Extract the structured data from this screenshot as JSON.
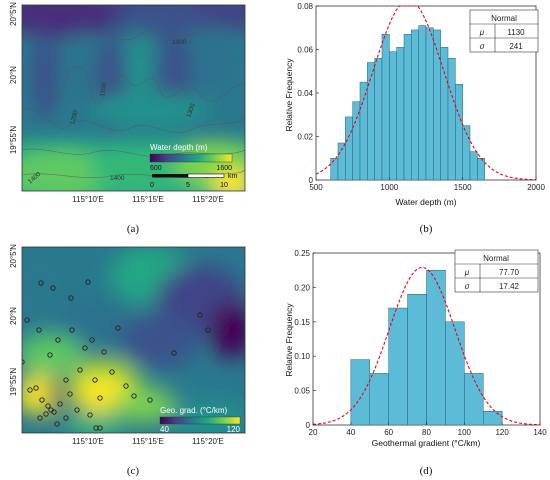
{
  "chart_data": [
    {
      "panel": "(a)",
      "type": "heatmap",
      "y_ticks": [
        "20°5′N",
        "20°N",
        "19°55′N"
      ],
      "x_ticks": [
        "115°10′E",
        "115°15′E",
        "115°20′E"
      ],
      "legend": {
        "title": "Water depth (m)",
        "min": "600",
        "max": "1600"
      },
      "scalebar": {
        "unit": "km",
        "labels": [
          "0",
          "5",
          "10"
        ]
      },
      "contour_labels": [
        "1000",
        "1100",
        "1200",
        "1300",
        "1400",
        "1400",
        "1400"
      ],
      "colormap": [
        "#440154",
        "#414487",
        "#2a788e",
        "#22a884",
        "#7ad151",
        "#fde725"
      ]
    },
    {
      "panel": "(b)",
      "type": "bar",
      "xlabel": "Water depth (m)",
      "ylabel": "Relative Frequency",
      "xlim": [
        500,
        2000
      ],
      "ylim": [
        0,
        0.08
      ],
      "x_ticks": [
        "500",
        "1000",
        "1500",
        "2000"
      ],
      "y_ticks": [
        "0",
        "0.02",
        "0.04",
        "0.06",
        "0.08"
      ],
      "bin_width": 50,
      "bin_starts": [
        600,
        650,
        700,
        750,
        800,
        850,
        900,
        950,
        1000,
        1050,
        1100,
        1150,
        1200,
        1250,
        1300,
        1350,
        1400,
        1450,
        1500,
        1550,
        1600
      ],
      "values": [
        0.01,
        0.017,
        0.029,
        0.036,
        0.045,
        0.054,
        0.056,
        0.067,
        0.059,
        0.061,
        0.067,
        0.069,
        0.071,
        0.07,
        0.069,
        0.061,
        0.056,
        0.044,
        0.025,
        0.013,
        0.01
      ],
      "fit": {
        "type": "normal",
        "mu": 1130,
        "sigma": 241
      },
      "stats_table": {
        "header": "Normal",
        "rows": [
          [
            "μ",
            "1130"
          ],
          [
            "σ",
            "241"
          ]
        ]
      },
      "bar_color": "#5cbcd8",
      "fit_color": "#e8001c"
    },
    {
      "panel": "(c)",
      "type": "heatmap",
      "y_ticks": [
        "20°5′N",
        "20°N",
        "19°55′N"
      ],
      "x_ticks": [
        "115°10′E",
        "115°15′E",
        "115°20′E"
      ],
      "legend": {
        "title": "Geo. grad. (°C/km)",
        "min": "40",
        "max": "120"
      },
      "colormap": [
        "#440154",
        "#414487",
        "#2a788e",
        "#22a884",
        "#7ad151",
        "#fde725"
      ]
    },
    {
      "panel": "(d)",
      "type": "bar",
      "xlabel": "Geothermal gradient (°C/km)",
      "ylabel": "Relative Frequency",
      "xlim": [
        20,
        140
      ],
      "ylim": [
        0,
        0.25
      ],
      "x_ticks": [
        "20",
        "40",
        "60",
        "80",
        "100",
        "120",
        "140"
      ],
      "y_ticks": [
        "0",
        "0.05",
        "0.10",
        "0.15",
        "0.20",
        "0.25"
      ],
      "bin_width": 10,
      "bin_starts": [
        40,
        50,
        60,
        70,
        80,
        90,
        100,
        110
      ],
      "values": [
        0.095,
        0.075,
        0.17,
        0.19,
        0.225,
        0.15,
        0.075,
        0.02
      ],
      "fit": {
        "type": "normal",
        "mu": 77.7,
        "sigma": 17.42
      },
      "stats_table": {
        "header": "Normal",
        "rows": [
          [
            "μ",
            "77.70"
          ],
          [
            "σ",
            "17.42"
          ]
        ]
      },
      "bar_color": "#5cbcd8",
      "fit_color": "#e8001c"
    }
  ]
}
